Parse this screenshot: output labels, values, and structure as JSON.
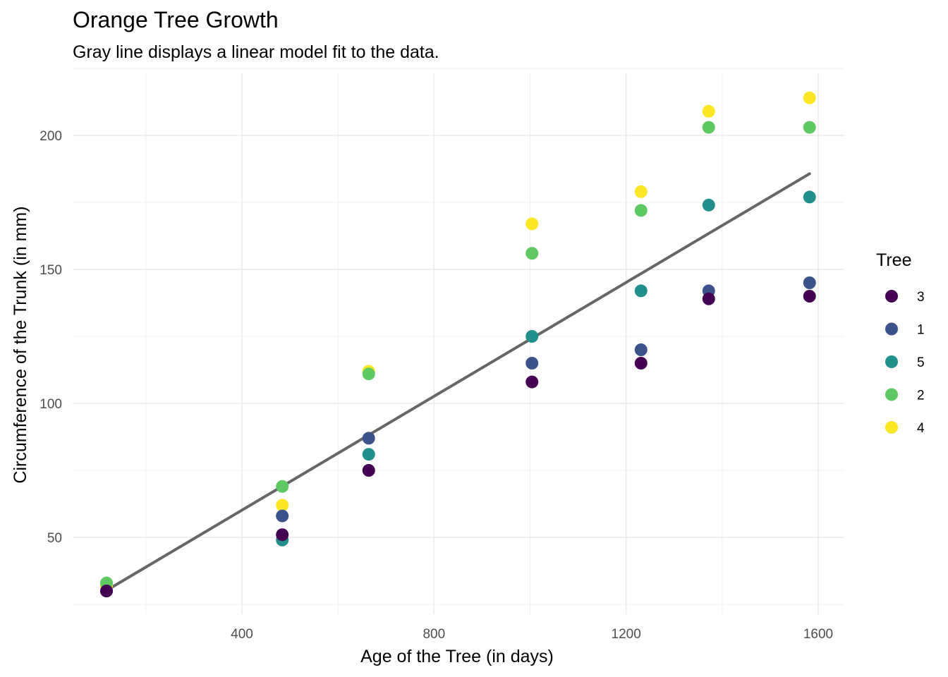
{
  "chart_data": {
    "type": "scatter",
    "title": "Orange Tree Growth",
    "subtitle": "Gray line displays a linear model fit to the data.",
    "xlabel": "Age of the Tree (in days)",
    "ylabel": "Circumference of the Trunk (in mm)",
    "xlim": [
      100,
      1600
    ],
    "ylim": [
      23,
      219
    ],
    "x_ticks": [
      400,
      800,
      1200,
      1600
    ],
    "y_ticks": [
      50,
      100,
      150,
      200
    ],
    "grid": true,
    "legend": {
      "title": "Tree",
      "placement": "right"
    },
    "x": [
      118,
      484,
      664,
      1004,
      1231,
      1372,
      1582
    ],
    "series": [
      {
        "name": "3",
        "color": "#440154",
        "values": [
          30,
          51,
          75,
          108,
          115,
          139,
          140
        ]
      },
      {
        "name": "1",
        "color": "#3b528b",
        "values": [
          30,
          58,
          87,
          115,
          120,
          142,
          145
        ]
      },
      {
        "name": "5",
        "color": "#21908c",
        "values": [
          30,
          49,
          81,
          125,
          142,
          174,
          177
        ]
      },
      {
        "name": "2",
        "color": "#5ec962",
        "values": [
          33,
          69,
          111,
          156,
          172,
          203,
          203
        ]
      },
      {
        "name": "4",
        "color": "#fde725",
        "values": [
          32,
          62,
          112,
          167,
          179,
          209,
          214
        ]
      }
    ],
    "fit_line": {
      "color": "#666666",
      "x": [
        118,
        1582
      ],
      "y": [
        30.2,
        185.7
      ]
    }
  }
}
